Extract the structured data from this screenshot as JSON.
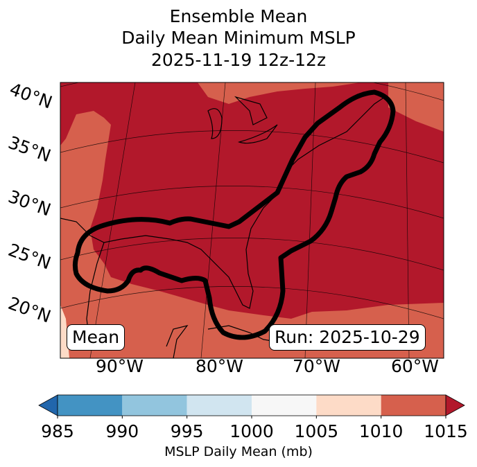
{
  "title": {
    "line1": "Ensemble Mean",
    "line2": "Daily Mean Minimum MSLP",
    "line3": "2025-11-19 12z-12z"
  },
  "lat_labels": [
    "40°N",
    "35°N",
    "30°N",
    "25°N",
    "20°N"
  ],
  "lon_labels": [
    "90°W",
    "80°W",
    "70°W",
    "60°W"
  ],
  "annotations": {
    "left": "Mean",
    "right": "Run: 2025-10-29"
  },
  "colorbar": {
    "label": "MSLP Daily Mean (mb)",
    "ticks": [
      "985",
      "990",
      "995",
      "1000",
      "1005",
      "1010",
      "1015"
    ],
    "colors": [
      "#4393c3",
      "#92c5de",
      "#d1e5f0",
      "#f7f7f7",
      "#fddbc7",
      "#d6604d"
    ],
    "under_color": "#2166ac",
    "over_color": "#b2182b"
  }
}
